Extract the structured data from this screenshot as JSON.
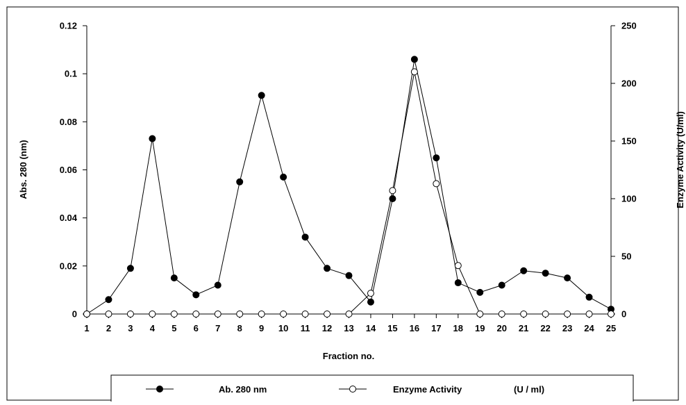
{
  "chart_data": {
    "type": "line",
    "title": "",
    "xlabel": "Fraction no.",
    "ylabel": "Abs. 280 (nm)",
    "y2label": "Enzyme Activity (U/ml)",
    "categories": [
      "1",
      "2",
      "3",
      "4",
      "5",
      "6",
      "7",
      "8",
      "9",
      "10",
      "11",
      "12",
      "13",
      "14",
      "15",
      "16",
      "17",
      "18",
      "19",
      "20",
      "21",
      "22",
      "23",
      "24",
      "25"
    ],
    "ylim": [
      0,
      0.12
    ],
    "y_ticks": [
      "0",
      "0.02",
      "0.04",
      "0.06",
      "0.08",
      "0.1",
      "0.12"
    ],
    "y2lim": [
      0,
      250
    ],
    "y2_ticks": [
      "0",
      "50",
      "100",
      "150",
      "200",
      "250"
    ],
    "grid": false,
    "legend_position": "bottom",
    "series": [
      {
        "name": "Ab. 280 nm",
        "axis": "left",
        "marker": "filled-circle",
        "color": "#000000",
        "values": [
          0.0,
          0.006,
          0.019,
          0.073,
          0.015,
          0.008,
          0.012,
          0.055,
          0.091,
          0.057,
          0.032,
          0.019,
          0.016,
          0.005,
          0.048,
          0.106,
          0.065,
          0.013,
          0.009,
          0.012,
          0.018,
          0.017,
          0.015,
          0.007,
          0.002
        ]
      },
      {
        "name": "Enzyme Activity",
        "axis": "right",
        "marker": "open-circle",
        "color": "#000000",
        "values": [
          0,
          0,
          0,
          0,
          0,
          0,
          0,
          0,
          0,
          0,
          0,
          0,
          0,
          18,
          107,
          210,
          113,
          42,
          0,
          0,
          0,
          0,
          0,
          0,
          0
        ]
      }
    ],
    "legend": {
      "entries": [
        "Ab. 280 nm",
        "Enzyme Activity"
      ],
      "unit_text": "(U / ml)"
    }
  }
}
